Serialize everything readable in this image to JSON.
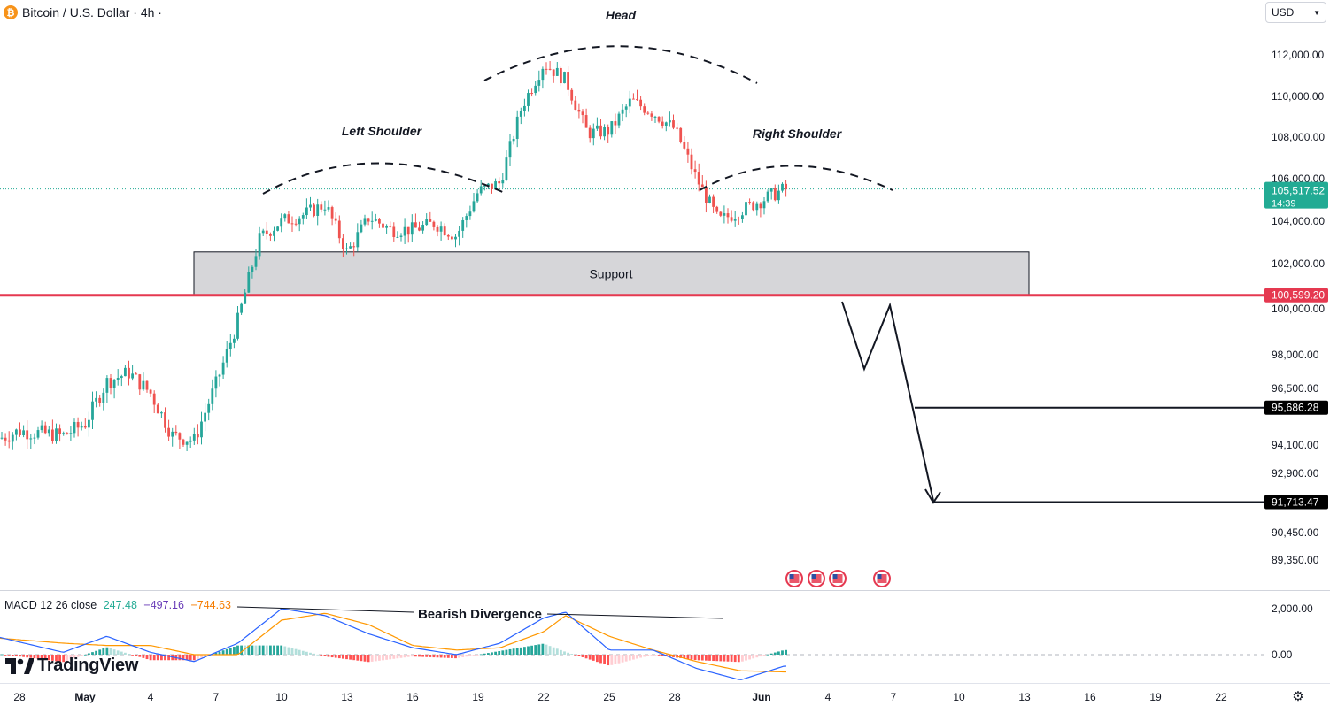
{
  "header": {
    "symbol_icon": "bitcoin-icon",
    "title": "Bitcoin / U.S. Dollar · 4h ·"
  },
  "currency": {
    "label": "USD"
  },
  "colors": {
    "up": "#26a69a",
    "down": "#ef5350",
    "support_line": "#e53950",
    "price_label": "#22ab94",
    "macd_line": "#2962ff",
    "signal_line": "#ff9800",
    "macd_value_hist": "#22ab94",
    "macd_value_macd": "#673ab7",
    "macd_value_signal": "#f57c00"
  },
  "annotations": {
    "head": "Head",
    "left_shoulder": "Left Shoulder",
    "right_shoulder": "Right Shoulder",
    "support": "Support",
    "divergence": "Bearish Divergence"
  },
  "macd": {
    "label": "MACD 12 26 close",
    "hist_value": "247.48",
    "macd_value": "−497.16",
    "signal_value": "−744.63",
    "axis_labels": [
      "2,000.00",
      "0.00"
    ],
    "axis_values": [
      2000,
      0
    ]
  },
  "brand": {
    "name": "TradingView"
  },
  "chart_data": {
    "type": "candlestick",
    "symbol": "Bitcoin / U.S. Dollar",
    "interval": "4h",
    "y_axis_ticks": [
      {
        "label": "112,000.00",
        "value": 112000
      },
      {
        "label": "110,000.00",
        "value": 110000
      },
      {
        "label": "108,000.00",
        "value": 108000
      },
      {
        "label": "106,000.00",
        "value": 106000
      },
      {
        "label": "104,000.00",
        "value": 104000
      },
      {
        "label": "102,000.00",
        "value": 102000
      },
      {
        "label": "100,000.00",
        "value": 100000
      },
      {
        "label": "98,000.00",
        "value": 98000
      },
      {
        "label": "96,500.00",
        "value": 96500
      },
      {
        "label": "94,100.00",
        "value": 94100
      },
      {
        "label": "92,900.00",
        "value": 92900
      },
      {
        "label": "90,450.00",
        "value": 90450
      },
      {
        "label": "89,350.00",
        "value": 89350
      }
    ],
    "x_axis_ticks": [
      "28",
      "May",
      "4",
      "7",
      "10",
      "13",
      "16",
      "19",
      "22",
      "25",
      "28",
      "Jun",
      "4",
      "7",
      "10",
      "13",
      "16",
      "19",
      "22"
    ],
    "current_price": {
      "label": "105,517.52",
      "value": 105517.52,
      "countdown": "14:39"
    },
    "support_level": {
      "label": "100,599.20",
      "value": 100599.2
    },
    "support_zone": {
      "low": 100600,
      "high": 102550
    },
    "targets": [
      {
        "label": "95,686.28",
        "value": 95686.28
      },
      {
        "label": "91,713.47",
        "value": 91713.47
      }
    ],
    "price_path": [
      {
        "date": "Apr 26",
        "close": 94000
      },
      {
        "date": "Apr 28",
        "close": 94700
      },
      {
        "date": "Apr 30",
        "close": 94500
      },
      {
        "date": "May 1",
        "close": 95000
      },
      {
        "date": "May 2",
        "close": 96800
      },
      {
        "date": "May 3",
        "close": 97200
      },
      {
        "date": "May 4",
        "close": 96300
      },
      {
        "date": "May 5",
        "close": 94500
      },
      {
        "date": "May 6",
        "close": 94300
      },
      {
        "date": "May 7",
        "close": 96700
      },
      {
        "date": "May 8",
        "close": 99500
      },
      {
        "date": "May 9",
        "close": 103200
      },
      {
        "date": "May 10",
        "close": 104000
      },
      {
        "date": "May 11",
        "close": 104300
      },
      {
        "date": "May 12",
        "close": 104800
      },
      {
        "date": "May 13",
        "close": 102500
      },
      {
        "date": "May 14",
        "close": 104200
      },
      {
        "date": "May 15",
        "close": 103600
      },
      {
        "date": "May 16",
        "close": 103600
      },
      {
        "date": "May 17",
        "close": 103900
      },
      {
        "date": "May 18",
        "close": 103300
      },
      {
        "date": "May 19",
        "close": 105400
      },
      {
        "date": "May 20",
        "close": 105800
      },
      {
        "date": "May 21",
        "close": 109500
      },
      {
        "date": "May 22",
        "close": 111600
      },
      {
        "date": "May 23",
        "close": 110800
      },
      {
        "date": "May 24",
        "close": 108200
      },
      {
        "date": "May 25",
        "close": 108300
      },
      {
        "date": "May 26",
        "close": 109800
      },
      {
        "date": "May 27",
        "close": 109200
      },
      {
        "date": "May 28",
        "close": 108400
      },
      {
        "date": "May 29",
        "close": 106000
      },
      {
        "date": "May 30",
        "close": 104000
      },
      {
        "date": "May 31",
        "close": 104500
      },
      {
        "date": "Jun 1",
        "close": 105000
      },
      {
        "date": "Jun 2",
        "close": 105500
      }
    ],
    "macd_path": [
      {
        "date": "Apr 26",
        "macd": 1000,
        "signal": 800
      },
      {
        "date": "Apr 30",
        "macd": 100,
        "signal": 500
      },
      {
        "date": "May 2",
        "macd": 800,
        "signal": 400
      },
      {
        "date": "May 4",
        "macd": 100,
        "signal": 400
      },
      {
        "date": "May 6",
        "macd": -300,
        "signal": 0
      },
      {
        "date": "May 8",
        "macd": 500,
        "signal": 0
      },
      {
        "date": "May 10",
        "macd": 2000,
        "signal": 1500
      },
      {
        "date": "May 12",
        "macd": 1700,
        "signal": 1800
      },
      {
        "date": "May 14",
        "macd": 900,
        "signal": 1300
      },
      {
        "date": "May 16",
        "macd": 300,
        "signal": 400
      },
      {
        "date": "May 18",
        "macd": 0,
        "signal": 200
      },
      {
        "date": "May 20",
        "macd": 500,
        "signal": 300
      },
      {
        "date": "May 22",
        "macd": 1600,
        "signal": 1000
      },
      {
        "date": "May 23",
        "macd": 1850,
        "signal": 1700
      },
      {
        "date": "May 25",
        "macd": 200,
        "signal": 800
      },
      {
        "date": "May 27",
        "macd": 200,
        "signal": 200
      },
      {
        "date": "May 29",
        "macd": -600,
        "signal": -300
      },
      {
        "date": "May 31",
        "macd": -1100,
        "signal": -700
      },
      {
        "date": "Jun 2",
        "macd": -500,
        "signal": -750
      }
    ]
  }
}
